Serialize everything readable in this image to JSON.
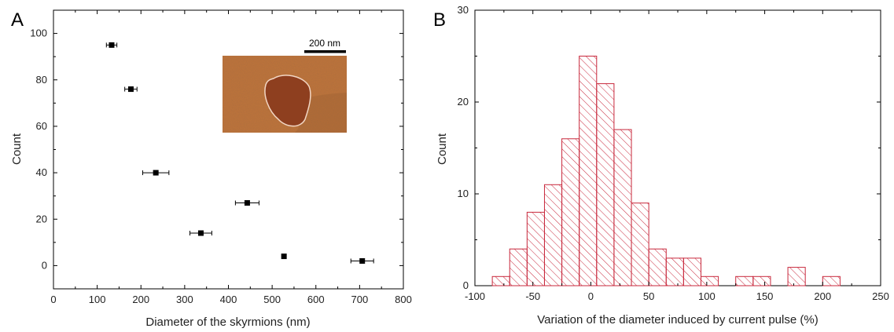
{
  "chart_data": [
    {
      "panel": "A",
      "type": "scatter",
      "xlabel": "Diameter of the skyrmions (nm)",
      "ylabel": "Count",
      "xlim": [
        0,
        800
      ],
      "ylim": [
        -10,
        110
      ],
      "xticks": [
        0,
        100,
        200,
        300,
        400,
        500,
        600,
        700,
        800
      ],
      "yticks": [
        0,
        20,
        40,
        60,
        80,
        100
      ],
      "points": [
        {
          "x": 133,
          "y": 95,
          "xerr": 12
        },
        {
          "x": 177,
          "y": 76,
          "xerr": 14
        },
        {
          "x": 234,
          "y": 40,
          "xerr": 30
        },
        {
          "x": 443,
          "y": 27,
          "xerr": 27
        },
        {
          "x": 337,
          "y": 14,
          "xerr": 25
        },
        {
          "x": 527,
          "y": 4,
          "xerr": 0
        },
        {
          "x": 706,
          "y": 2,
          "xerr": 26
        }
      ],
      "inset": {
        "scale_bar_label": "200 nm",
        "background_color": "#c0733a",
        "domain_color": "#8e3f1f",
        "outline_color": "#f2d6c4"
      }
    },
    {
      "panel": "B",
      "type": "bar",
      "xlabel": "Variation of the diameter induced by current pulse (%)",
      "ylabel": "Count",
      "xlim": [
        -100,
        250
      ],
      "ylim": [
        0,
        30
      ],
      "xticks": [
        -100,
        -50,
        0,
        50,
        100,
        150,
        200,
        250
      ],
      "yticks": [
        0,
        10,
        20,
        30
      ],
      "bin_width": 15,
      "bin_starts": [
        -85,
        -70,
        -55,
        -40,
        -25,
        -10,
        5,
        20,
        35,
        50,
        65,
        80,
        95,
        125,
        140,
        170,
        200
      ],
      "values": [
        1,
        4,
        8,
        11,
        16,
        25,
        22,
        17,
        9,
        4,
        3,
        3,
        1,
        1,
        1,
        2,
        1
      ],
      "bar_color": "#c8283c"
    }
  ]
}
